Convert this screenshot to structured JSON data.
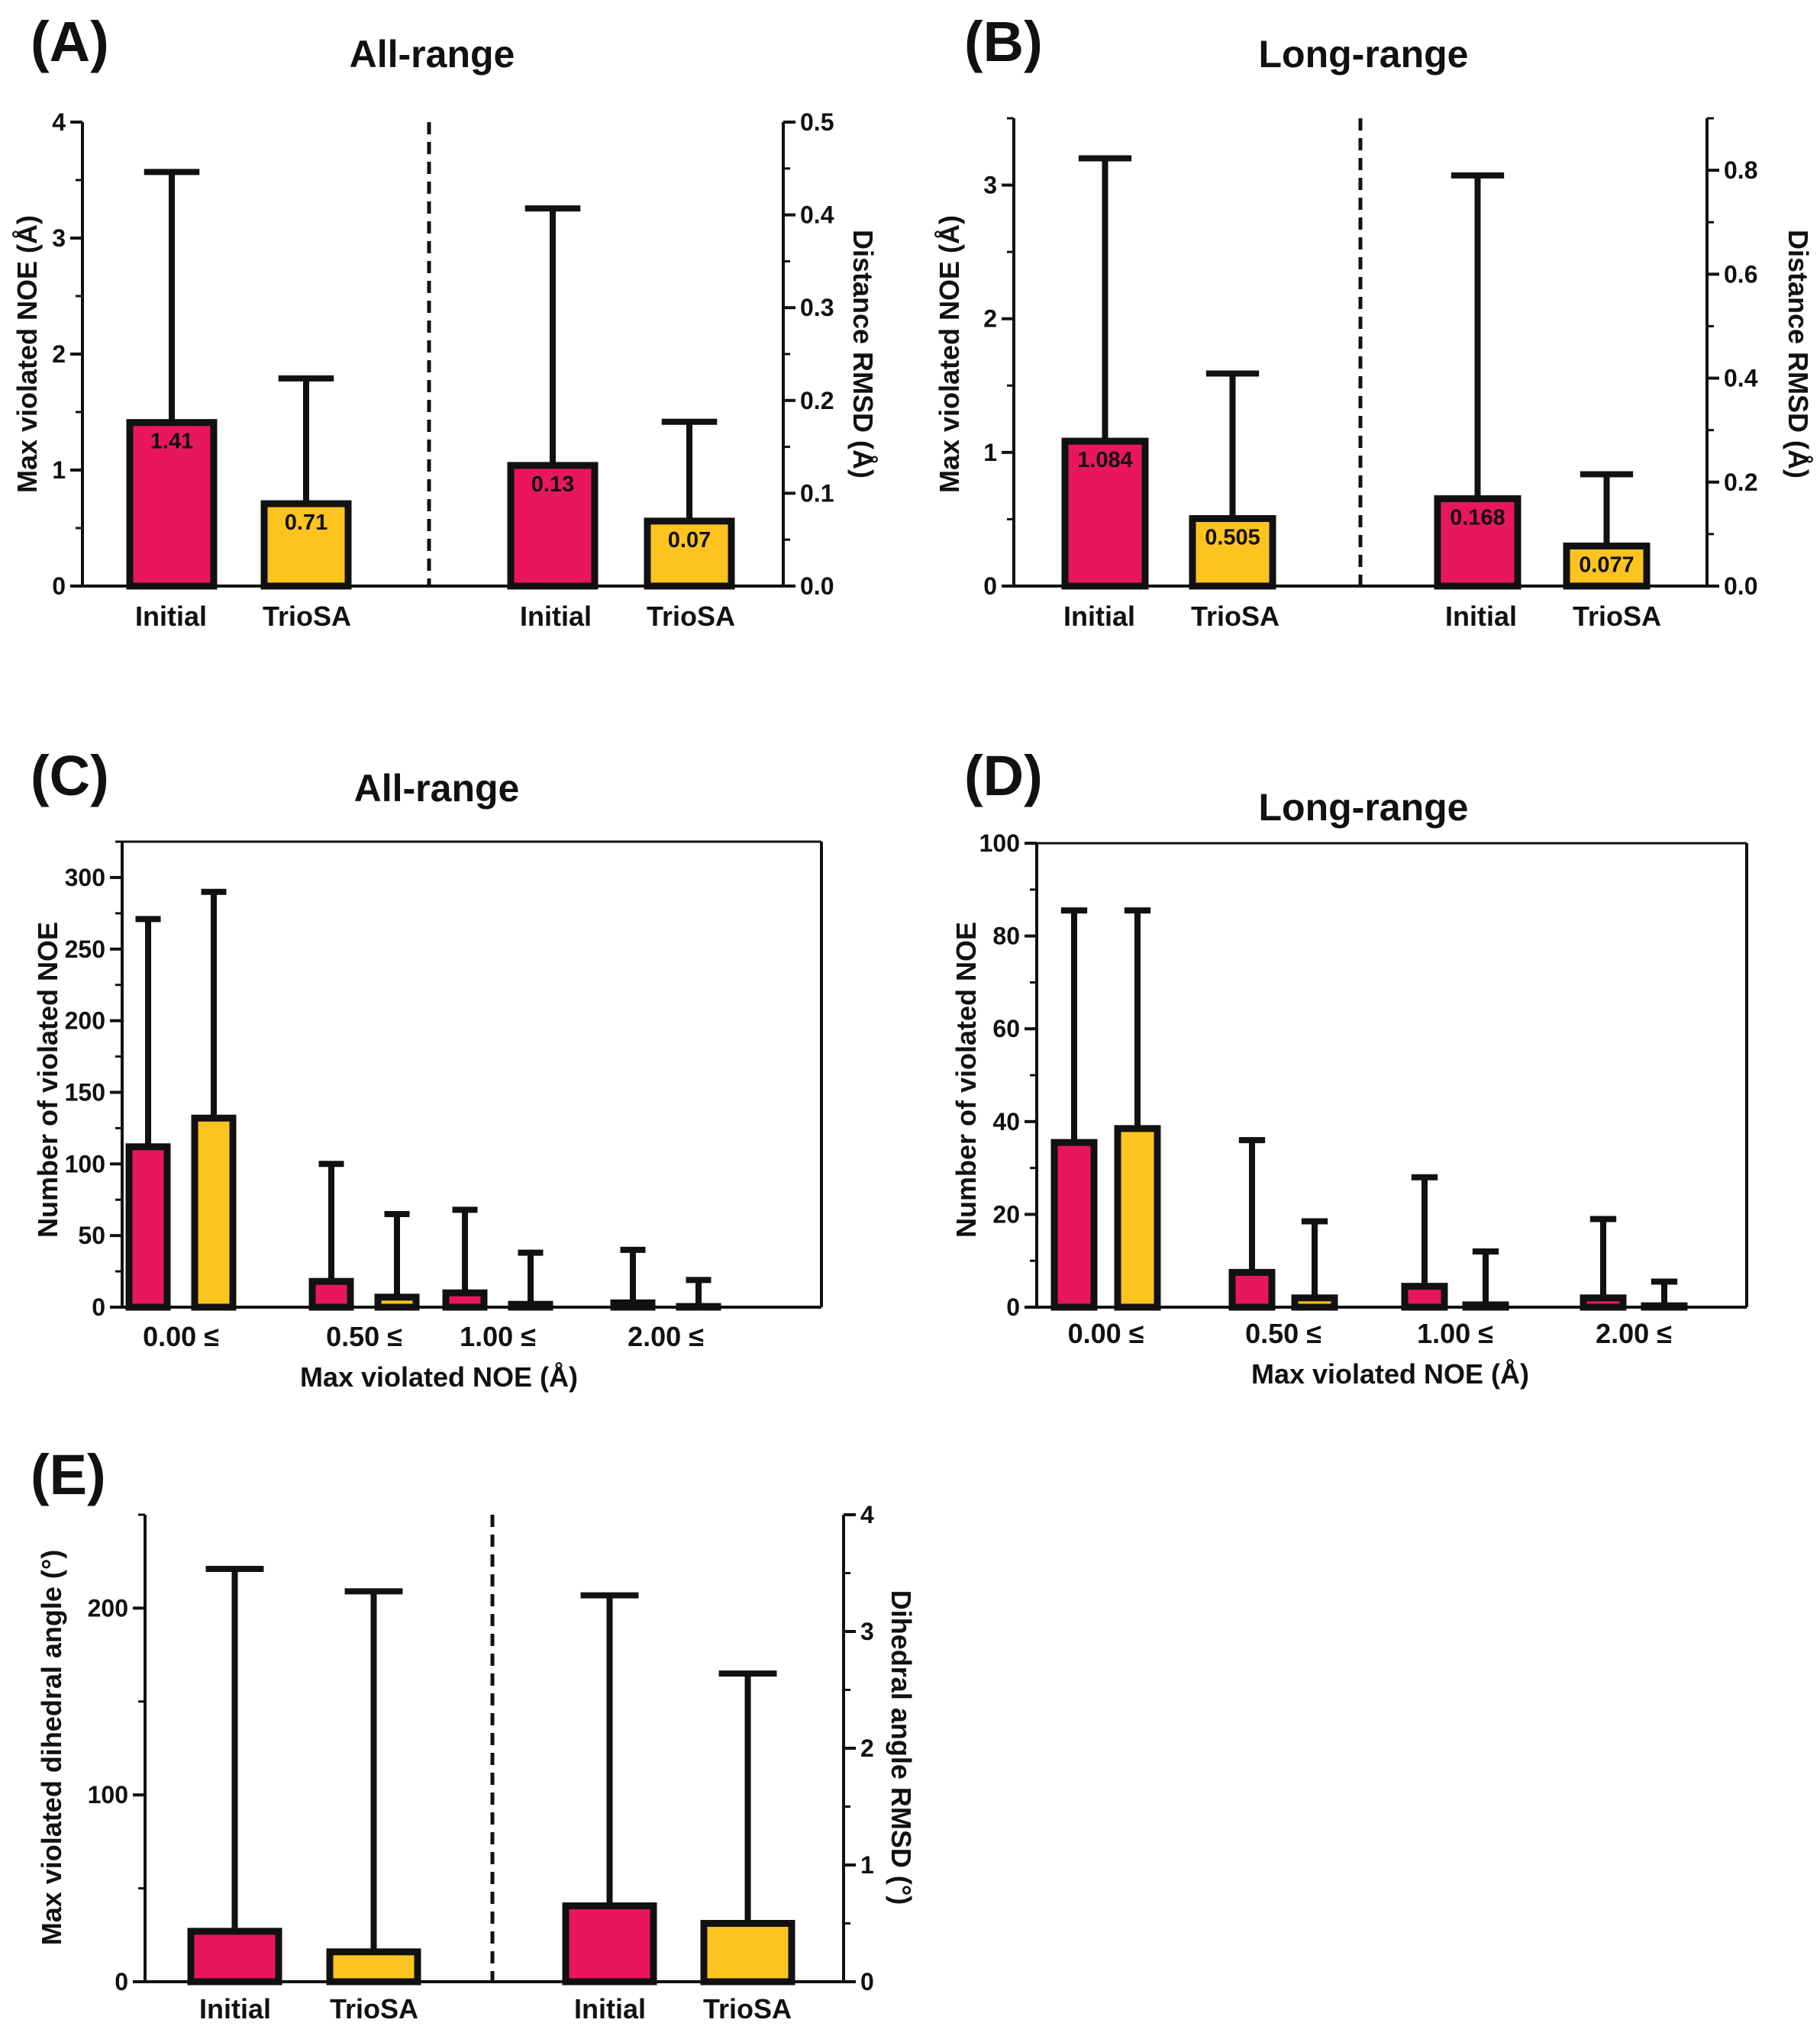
{
  "colors": {
    "initial": "#E8175D",
    "triosa": "#FDC420",
    "ink": "#111111"
  },
  "chart_data": [
    {
      "id": "A",
      "panel_label": "(A)",
      "type": "bar",
      "title": "All-range",
      "ylabel": "Max violated NOE (Å)",
      "ylim": [
        0,
        4
      ],
      "yticks": [
        "0",
        "1",
        "2",
        "3",
        "4"
      ],
      "y2label": "Distance RMSD (Å)",
      "y2lim": [
        0,
        0.5
      ],
      "y2ticks": [
        "0.0",
        "0.1",
        "0.2",
        "0.3",
        "0.4",
        "0.5"
      ],
      "categories": [
        "Initial",
        "TrioSA",
        "Initial",
        "TrioSA"
      ],
      "groups": [
        {
          "name": "Max violated NOE",
          "axis": "left",
          "bars": [
            {
              "series": "Initial",
              "value": 1.41,
              "error_top": 3.57,
              "label": "1.41"
            },
            {
              "series": "TrioSA",
              "value": 0.71,
              "error_top": 1.79,
              "label": "0.71"
            }
          ]
        },
        {
          "name": "Distance RMSD",
          "axis": "right",
          "bars": [
            {
              "series": "Initial",
              "value": 0.13,
              "error_top": 0.407,
              "label": "0.13"
            },
            {
              "series": "TrioSA",
              "value": 0.07,
              "error_top": 0.177,
              "label": "0.07"
            }
          ]
        }
      ]
    },
    {
      "id": "B",
      "panel_label": "(B)",
      "type": "bar",
      "title": "Long-range",
      "ylabel": "Max violated NOE (Å)",
      "ylim": [
        0,
        3.5
      ],
      "yticks": [
        "0",
        "1",
        "2",
        "3"
      ],
      "y2label": "Distance RMSD (Å)",
      "y2lim": [
        0,
        0.9
      ],
      "y2ticks": [
        "0.0",
        "0.2",
        "0.4",
        "0.6",
        "0.8"
      ],
      "categories": [
        "Initial",
        "TrioSA",
        "Initial",
        "TrioSA"
      ],
      "groups": [
        {
          "name": "Max violated NOE",
          "axis": "left",
          "bars": [
            {
              "series": "Initial",
              "value": 1.084,
              "error_top": 3.2,
              "label": "1.084"
            },
            {
              "series": "TrioSA",
              "value": 0.505,
              "error_top": 1.59,
              "label": "0.505"
            }
          ]
        },
        {
          "name": "Distance RMSD",
          "axis": "right",
          "bars": [
            {
              "series": "Initial",
              "value": 0.168,
              "error_top": 0.79,
              "label": "0.168"
            },
            {
              "series": "TrioSA",
              "value": 0.077,
              "error_top": 0.215,
              "label": "0.077"
            }
          ]
        }
      ]
    },
    {
      "id": "C",
      "panel_label": "(C)",
      "type": "bar",
      "title": "All-range",
      "ylabel": "Number of violated NOE",
      "ylim": [
        0,
        325
      ],
      "yticks": [
        "0",
        "50",
        "100",
        "150",
        "200",
        "250",
        "300"
      ],
      "xlabel": "Max violated NOE (Å)",
      "categories": [
        "0.00 ≤",
        "0.50 ≤",
        "1.00 ≤",
        "2.00 ≤"
      ],
      "series": [
        {
          "name": "Initial",
          "values": [
            112,
            18,
            10,
            3
          ],
          "error_top": [
            271,
            100,
            68,
            40
          ]
        },
        {
          "name": "TrioSA",
          "values": [
            132,
            7,
            2,
            0.5
          ],
          "error_top": [
            290,
            65,
            38,
            19
          ]
        }
      ]
    },
    {
      "id": "D",
      "panel_label": "(D)",
      "type": "bar",
      "title": "Long-range",
      "ylabel": "Number of violated  NOE",
      "ylim": [
        0,
        100
      ],
      "yticks": [
        "0",
        "20",
        "40",
        "60",
        "80",
        "100"
      ],
      "xlabel": "Max violated NOE (Å)",
      "categories": [
        "0.00 ≤",
        "0.50 ≤",
        "1.00 ≤",
        "2.00 ≤"
      ],
      "series": [
        {
          "name": "Initial",
          "values": [
            35.5,
            7.5,
            4.5,
            2
          ],
          "error_top": [
            85.5,
            36,
            28,
            19
          ]
        },
        {
          "name": "TrioSA",
          "values": [
            38.5,
            2,
            0.5,
            0.3
          ],
          "error_top": [
            85.5,
            18.5,
            12,
            5.5
          ]
        }
      ]
    },
    {
      "id": "E",
      "panel_label": "(E)",
      "type": "bar",
      "title": "",
      "ylabel": "Max violated dihedral angle (°)",
      "ylim": [
        0,
        250
      ],
      "yticks": [
        "0",
        "100",
        "200"
      ],
      "y2label": "Dihedral angle RMSD (°)",
      "y2lim": [
        0,
        4
      ],
      "y2ticks": [
        "0",
        "1",
        "2",
        "3",
        "4"
      ],
      "categories": [
        "Initial",
        "TrioSA",
        "Initial",
        "TrioSA"
      ],
      "groups": [
        {
          "name": "Max violated dihedral angle",
          "axis": "left",
          "bars": [
            {
              "series": "Initial",
              "value": 27,
              "error_top": 221
            },
            {
              "series": "TrioSA",
              "value": 16,
              "error_top": 209
            }
          ]
        },
        {
          "name": "Dihedral angle RMSD",
          "axis": "right",
          "bars": [
            {
              "series": "Initial",
              "value": 0.65,
              "error_top": 3.31
            },
            {
              "series": "TrioSA",
              "value": 0.5,
              "error_top": 2.64
            }
          ]
        }
      ]
    }
  ]
}
